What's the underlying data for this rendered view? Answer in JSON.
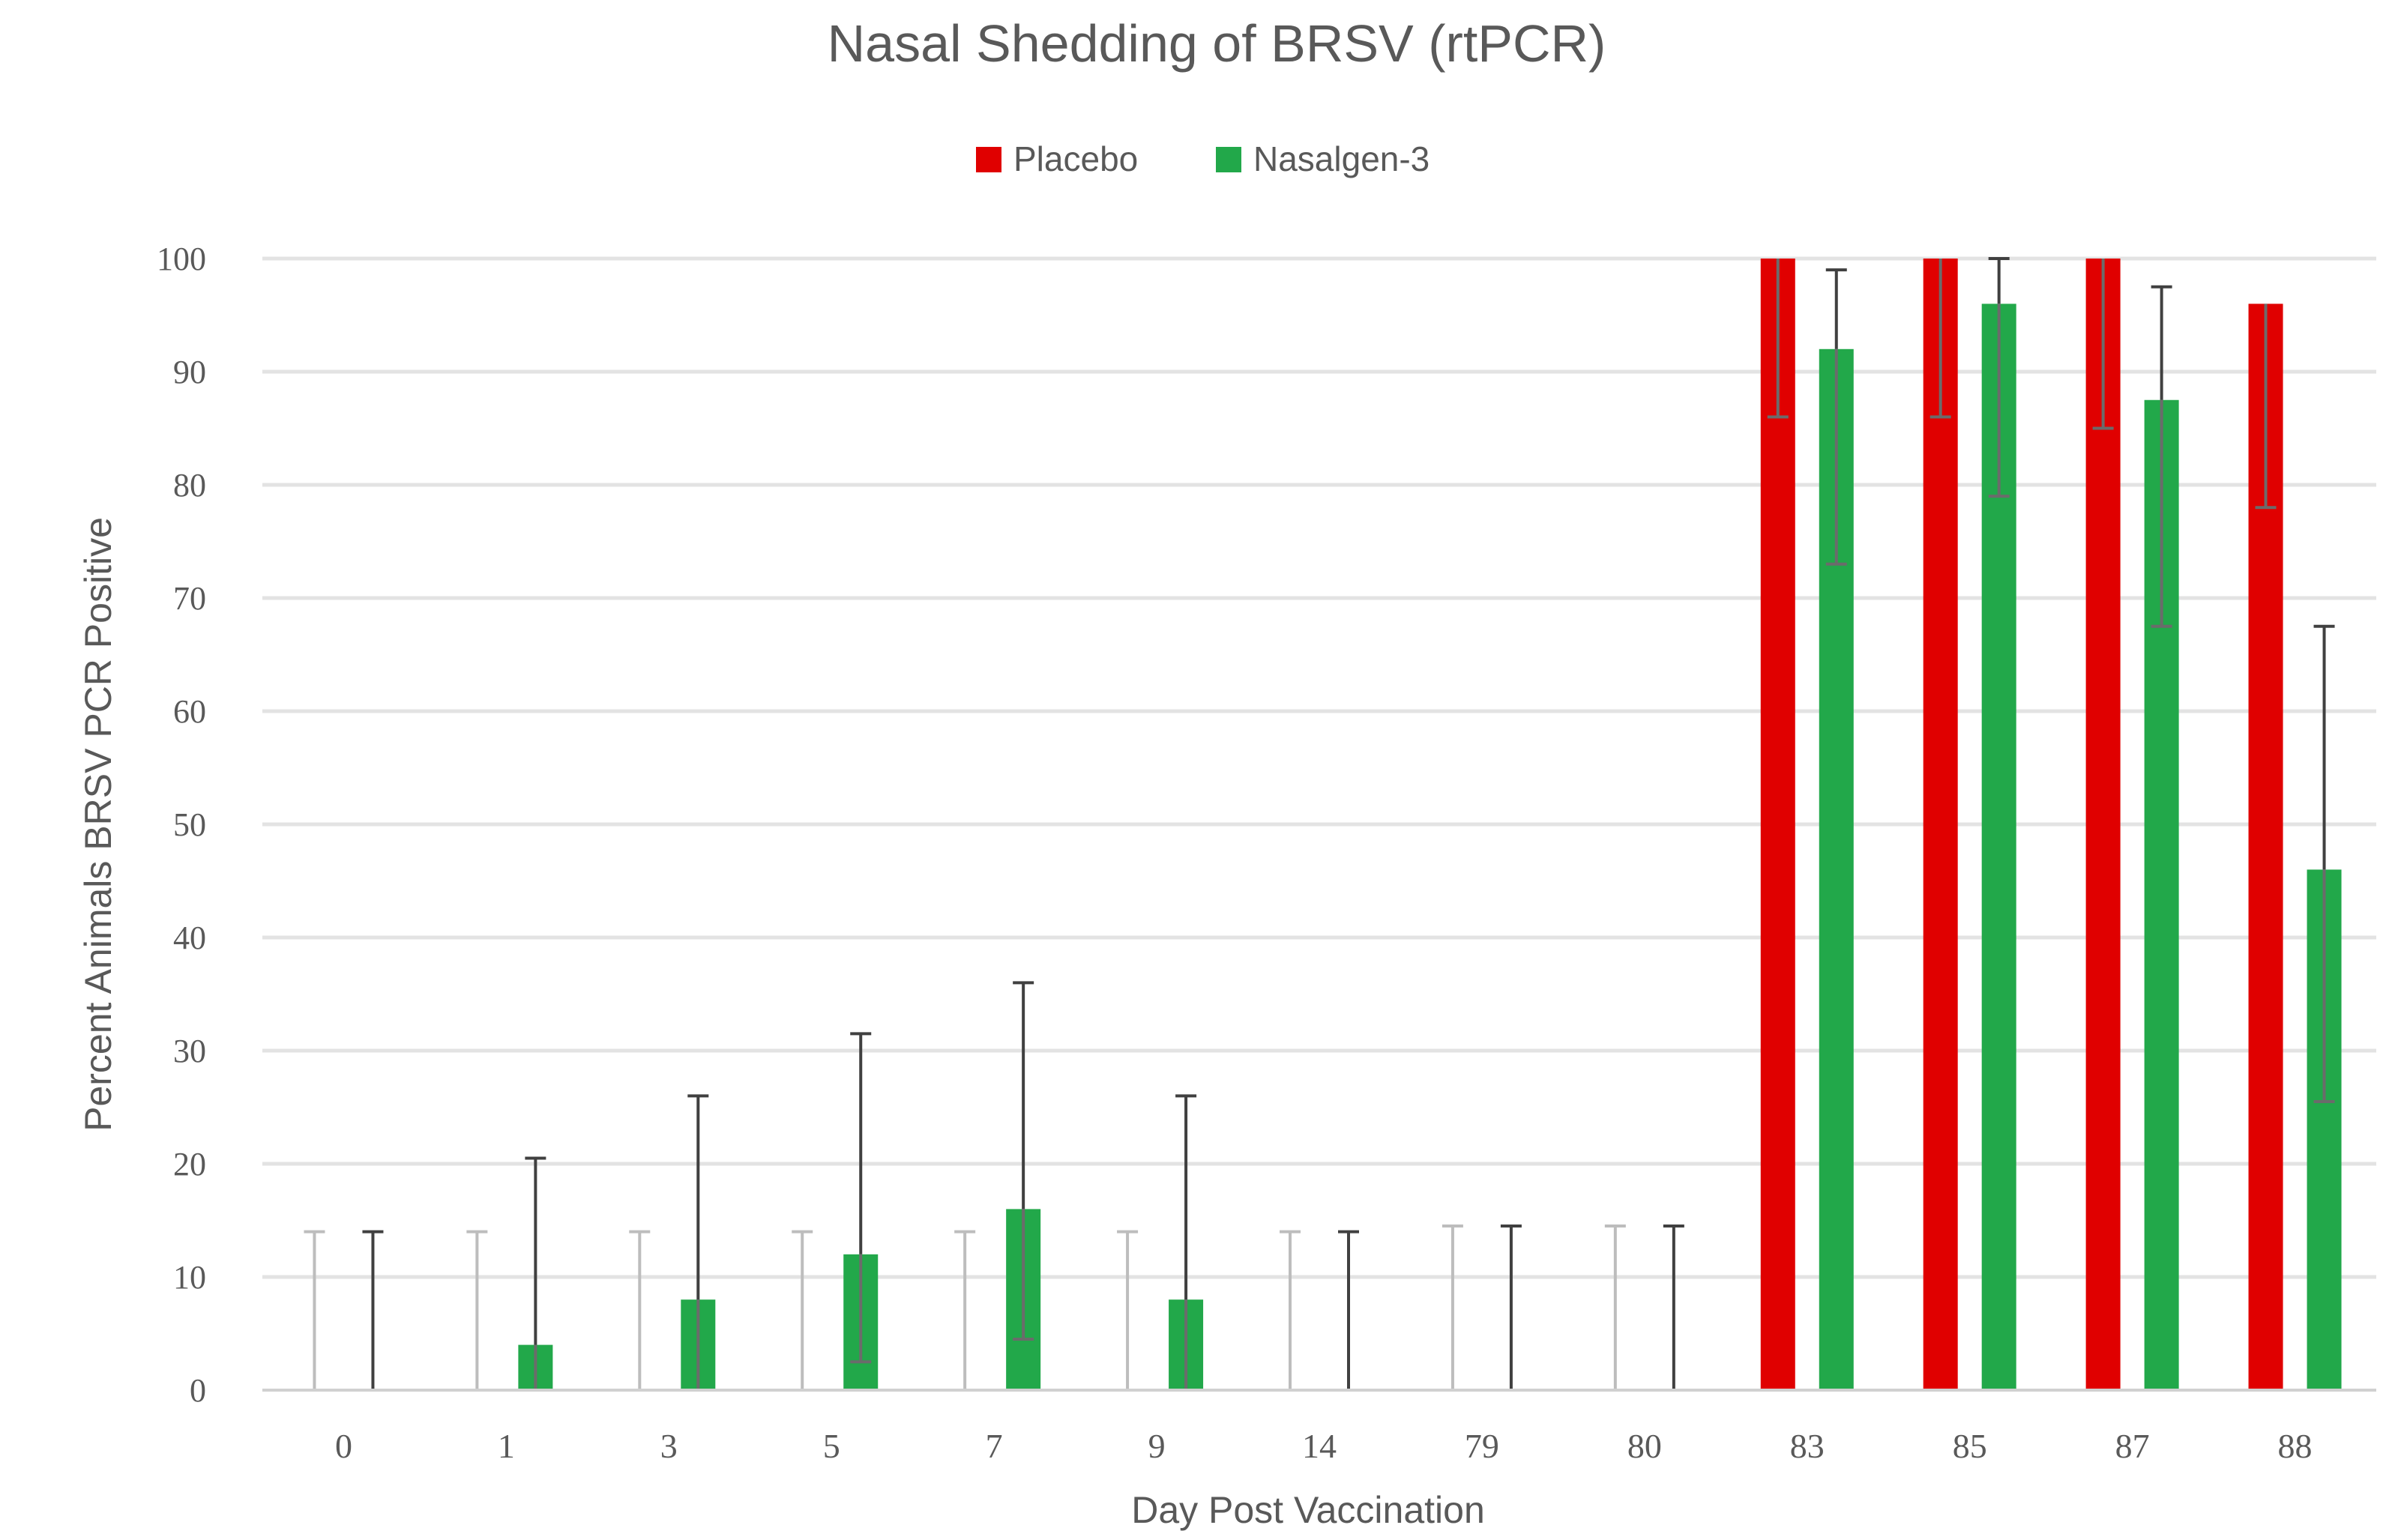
{
  "chart_data": {
    "type": "bar",
    "title": "Nasal Shedding of BRSV (rtPCR)",
    "xlabel": "Day Post Vaccination",
    "ylabel": "Percent Animals BRSV PCR Positive",
    "ylim": [
      0,
      100
    ],
    "yticks": [
      0,
      10,
      20,
      30,
      40,
      50,
      60,
      70,
      80,
      90,
      100
    ],
    "grid": true,
    "legend_position": "top-center",
    "categories": [
      "0",
      "1",
      "3",
      "5",
      "7",
      "9",
      "14",
      "79",
      "80",
      "83",
      "85",
      "87",
      "88"
    ],
    "series": [
      {
        "name": "Placebo",
        "color": "#e00000",
        "values": [
          0,
          0,
          0,
          0,
          0,
          0,
          0,
          0,
          0,
          100,
          100,
          100,
          96
        ],
        "error_low": [
          0,
          0,
          0,
          0,
          0,
          0,
          0,
          0,
          0,
          86,
          86,
          85,
          78
        ],
        "error_high": [
          14,
          14,
          14,
          14,
          14,
          14,
          14,
          14.5,
          14.5,
          100,
          100,
          100,
          96
        ]
      },
      {
        "name": "Nasalgen-3",
        "color": "#22a84a",
        "values": [
          0,
          4,
          8,
          12,
          16,
          8,
          0,
          0,
          0,
          92,
          96,
          87.5,
          46
        ],
        "error_low": [
          0,
          0,
          0,
          2.5,
          4.5,
          0,
          0,
          0,
          0,
          73,
          79,
          67.5,
          25.5
        ],
        "error_high": [
          14,
          20.5,
          26,
          31.5,
          36,
          26,
          14,
          14.5,
          14.5,
          99,
          100,
          97.5,
          67.5
        ]
      }
    ]
  }
}
